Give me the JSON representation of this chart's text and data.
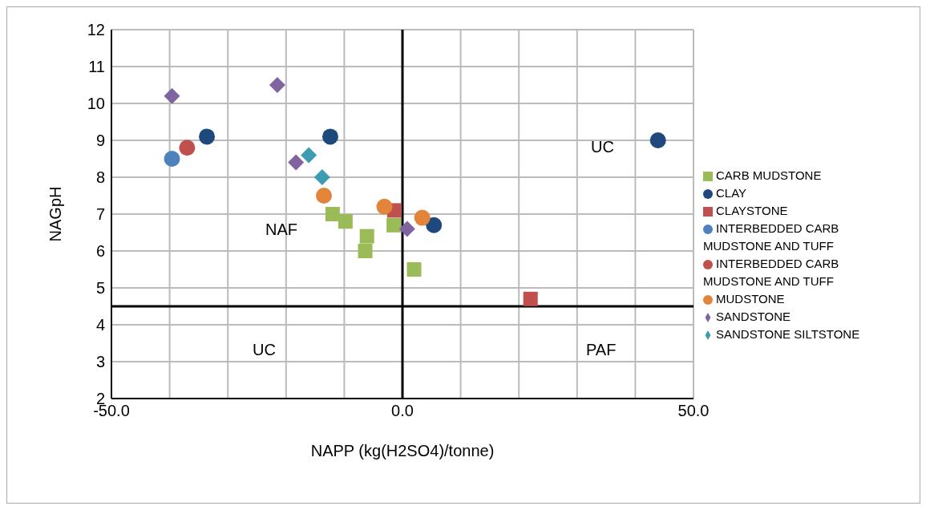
{
  "chart_data": {
    "type": "scatter",
    "xlabel": "NAPP (kg(H2SO4)/tonne)",
    "ylabel": "NAGpH",
    "xlim": [
      -50,
      50
    ],
    "xticks": [
      {
        "value": -50,
        "label": "-50.0"
      },
      {
        "value": -40,
        "label": null
      },
      {
        "value": -30,
        "label": null
      },
      {
        "value": -20,
        "label": null
      },
      {
        "value": -10,
        "label": null
      },
      {
        "value": 0,
        "label": "0.0"
      },
      {
        "value": 10,
        "label": null
      },
      {
        "value": 20,
        "label": null
      },
      {
        "value": 30,
        "label": null
      },
      {
        "value": 40,
        "label": null
      },
      {
        "value": 50,
        "label": "50.0"
      }
    ],
    "ylim": [
      2,
      12
    ],
    "yticks": [
      2,
      3,
      4,
      5,
      6,
      7,
      8,
      9,
      10,
      11,
      12
    ],
    "grid": true,
    "legend": "right",
    "series": [
      {
        "name": "CARB MUDSTONE",
        "color": "#9bbb59",
        "marker": "square",
        "x": [
          -12.0,
          -9.8,
          -6.1,
          -6.4,
          -1.5,
          2.0
        ],
        "values": [
          7.0,
          6.8,
          6.4,
          6.0,
          6.7,
          5.5
        ]
      },
      {
        "name": "CLAY",
        "color": "#1f497d",
        "marker": "circle",
        "x": [
          -33.6,
          -12.4,
          5.4,
          43.9
        ],
        "values": [
          9.1,
          9.1,
          6.7,
          9.0
        ]
      },
      {
        "name": "CLAYSTONE",
        "color": "#c0504d",
        "marker": "square",
        "x": [
          -1.4,
          22.0
        ],
        "values": [
          7.1,
          4.7
        ]
      },
      {
        "name": "INTERBEDDED CARB MUDSTONE AND TUFF",
        "color": "#4f81bd",
        "marker": "circle",
        "x": [
          -39.6
        ],
        "values": [
          8.5
        ]
      },
      {
        "name": "INTERBEDDED CARB MUDSTONE AND TUFF",
        "color": "#c0504d",
        "marker": "circle",
        "x": [
          -37.0
        ],
        "values": [
          8.8
        ]
      },
      {
        "name": "MUDSTONE",
        "color": "#e2843a",
        "marker": "circle",
        "x": [
          -13.5,
          -3.1,
          3.4
        ],
        "values": [
          7.5,
          7.2,
          6.9
        ]
      },
      {
        "name": "SANDSTONE",
        "color": "#8064a2",
        "marker": "diamond",
        "x": [
          -39.6,
          -21.5,
          -18.3,
          0.8
        ],
        "values": [
          10.2,
          10.5,
          8.4,
          6.6
        ]
      },
      {
        "name": "SANDSTONE SILTSTONE",
        "color": "#3d9cb2",
        "marker": "diamond",
        "x": [
          -16.1,
          -13.8
        ],
        "values": [
          8.6,
          8.0
        ]
      }
    ],
    "ref_lines": [
      {
        "axis": "x",
        "value": 0,
        "color": "#000000"
      },
      {
        "axis": "y",
        "value": 4.5,
        "color": "#000000"
      }
    ],
    "annotations": [
      "NAF",
      "UC",
      "UC",
      "PAF"
    ]
  }
}
